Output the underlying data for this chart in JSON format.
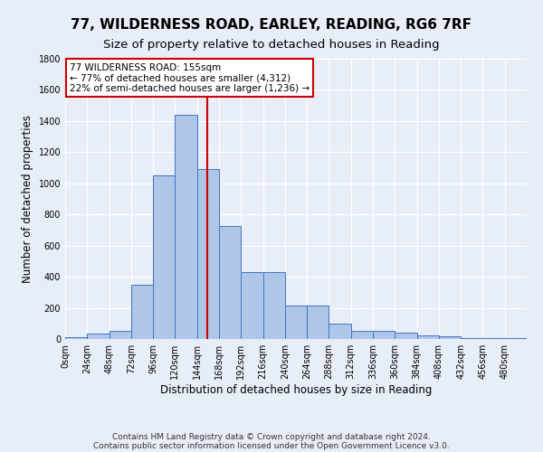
{
  "title": "77, WILDERNESS ROAD, EARLEY, READING, RG6 7RF",
  "subtitle": "Size of property relative to detached houses in Reading",
  "xlabel": "Distribution of detached houses by size in Reading",
  "ylabel": "Number of detached properties",
  "bin_labels": [
    "0sqm",
    "24sqm",
    "48sqm",
    "72sqm",
    "96sqm",
    "120sqm",
    "144sqm",
    "168sqm",
    "192sqm",
    "216sqm",
    "240sqm",
    "264sqm",
    "288sqm",
    "312sqm",
    "336sqm",
    "360sqm",
    "384sqm",
    "408sqm",
    "432sqm",
    "456sqm",
    "480sqm"
  ],
  "bar_heights": [
    10,
    35,
    50,
    350,
    1050,
    1440,
    1090,
    725,
    430,
    430,
    215,
    215,
    100,
    50,
    50,
    40,
    25,
    20,
    5,
    5,
    5
  ],
  "bin_edges": [
    0,
    24,
    48,
    72,
    96,
    120,
    144,
    168,
    192,
    216,
    240,
    264,
    288,
    312,
    336,
    360,
    384,
    408,
    432,
    456,
    480,
    504
  ],
  "bar_color": "#aec6e8",
  "bar_edge_color": "#4472c4",
  "property_size": 155,
  "vline_color": "#cc0000",
  "annotation_line1": "77 WILDERNESS ROAD: 155sqm",
  "annotation_line2": "← 77% of detached houses are smaller (4,312)",
  "annotation_line3": "22% of semi-detached houses are larger (1,236) →",
  "annotation_box_color": "#ffffff",
  "annotation_box_edge": "#cc0000",
  "ylim": [
    0,
    1800
  ],
  "yticks": [
    0,
    200,
    400,
    600,
    800,
    1000,
    1200,
    1400,
    1600,
    1800
  ],
  "footnote1": "Contains HM Land Registry data © Crown copyright and database right 2024.",
  "footnote2": "Contains public sector information licensed under the Open Government Licence v3.0.",
  "background_color": "#e8eef7",
  "plot_bg_color": "#e8eef7",
  "grid_color": "#ffffff",
  "title_fontsize": 11,
  "subtitle_fontsize": 9.5,
  "axis_label_fontsize": 8.5,
  "tick_fontsize": 7,
  "footnote_fontsize": 6.5
}
